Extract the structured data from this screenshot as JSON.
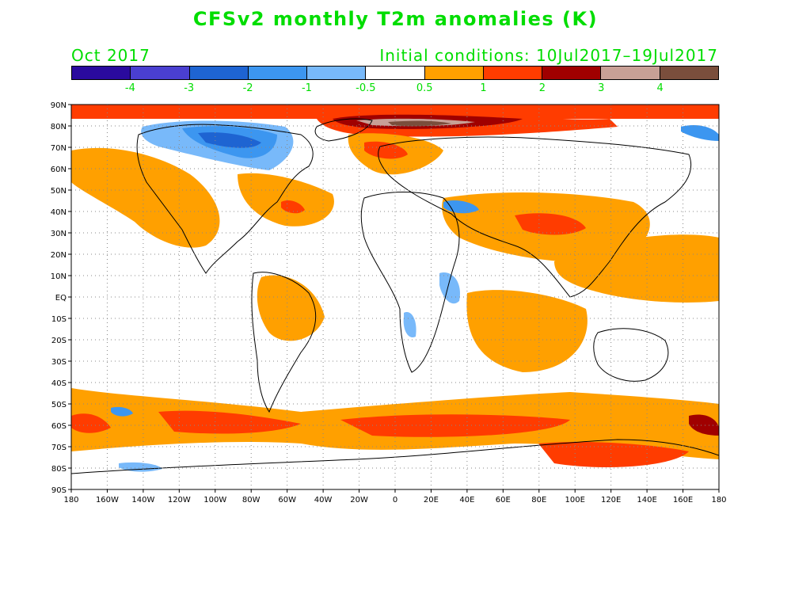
{
  "title": "CFSv2 monthly T2m anomalies (K)",
  "valid_month": "Oct 2017",
  "initial_conditions": "Initial conditions: 10Jul2017–19Jul2017",
  "colorbar": {
    "colors": [
      "#2a0a9e",
      "#4a3fd0",
      "#1e64d2",
      "#3c96f0",
      "#78b9fa",
      "#ffffff",
      "#ffa000",
      "#ff3c00",
      "#a00000",
      "#c8a096",
      "#7a4e3c"
    ],
    "labels": [
      "-4",
      "-3",
      "-2",
      "-1",
      "-0.5",
      "0.5",
      "1",
      "2",
      "3",
      "4"
    ]
  },
  "map": {
    "lat_labels": [
      "90N",
      "80N",
      "70N",
      "60N",
      "50N",
      "40N",
      "30N",
      "20N",
      "10N",
      "EQ",
      "10S",
      "20S",
      "30S",
      "40S",
      "50S",
      "60S",
      "70S",
      "80S",
      "90S"
    ],
    "lon_labels": [
      "180",
      "160W",
      "140W",
      "120W",
      "100W",
      "80W",
      "60W",
      "40W",
      "20W",
      "0",
      "20E",
      "40E",
      "60E",
      "80E",
      "100E",
      "120E",
      "140E",
      "160E",
      "180"
    ]
  }
}
